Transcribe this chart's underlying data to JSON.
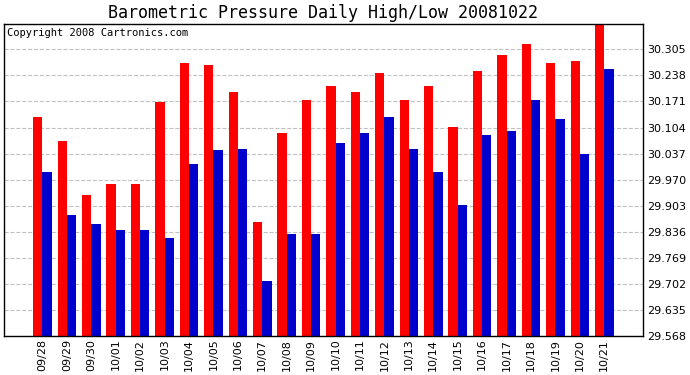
{
  "title": "Barometric Pressure Daily High/Low 20081022",
  "copyright": "Copyright 2008 Cartronics.com",
  "categories": [
    "09/28",
    "09/29",
    "09/30",
    "10/01",
    "10/02",
    "10/03",
    "10/04",
    "10/05",
    "10/06",
    "10/07",
    "10/08",
    "10/09",
    "10/10",
    "10/11",
    "10/12",
    "10/13",
    "10/14",
    "10/15",
    "10/16",
    "10/17",
    "10/18",
    "10/19",
    "10/20",
    "10/21"
  ],
  "highs": [
    30.13,
    30.07,
    29.93,
    29.96,
    29.96,
    30.17,
    30.27,
    30.265,
    30.195,
    29.86,
    30.09,
    30.175,
    30.21,
    30.195,
    30.245,
    30.175,
    30.21,
    30.105,
    30.25,
    30.29,
    30.32,
    30.27,
    30.275,
    30.38
  ],
  "lows": [
    29.99,
    29.88,
    29.855,
    29.84,
    29.84,
    29.82,
    30.01,
    30.045,
    30.05,
    29.71,
    29.83,
    29.83,
    30.065,
    30.09,
    30.13,
    30.05,
    29.99,
    29.905,
    30.085,
    30.095,
    30.175,
    30.125,
    30.035,
    30.255
  ],
  "high_color": "#ff0000",
  "low_color": "#0000cc",
  "bg_color": "#ffffff",
  "plot_bg_color": "#ffffff",
  "grid_color": "#bbbbbb",
  "ymin": 29.568,
  "ymax": 30.371,
  "ytick_step": 0.067,
  "bar_width": 0.38,
  "title_fontsize": 12,
  "tick_fontsize": 8,
  "copyright_fontsize": 7.5
}
